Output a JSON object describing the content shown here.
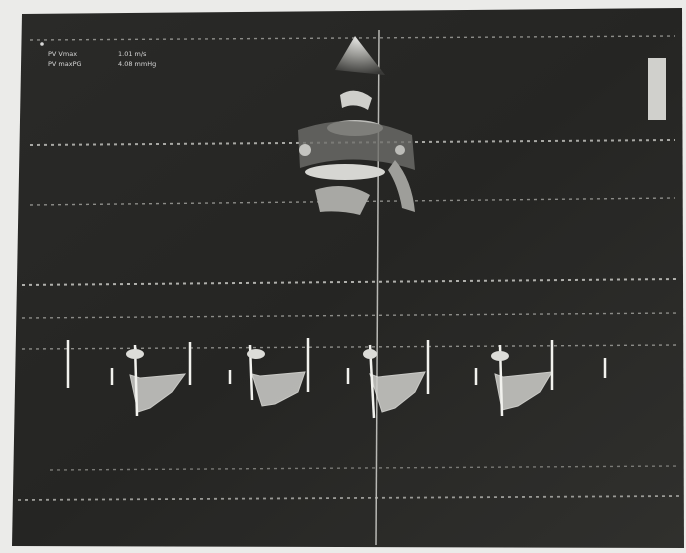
{
  "measurements": [
    {
      "label": "PV Vmax",
      "value": "1.01 m/s"
    },
    {
      "label": "PV maxPG",
      "value": "4.08 mmHg"
    }
  ]
}
